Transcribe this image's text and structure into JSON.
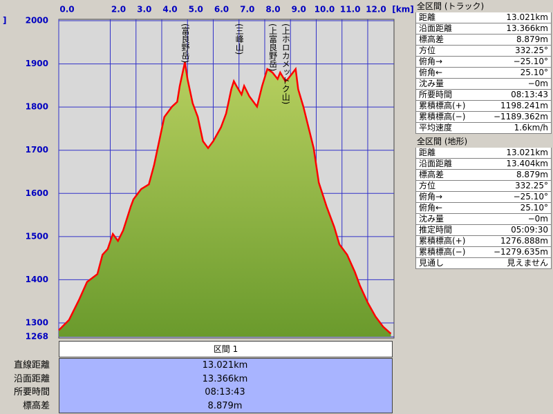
{
  "chart_data": {
    "type": "area",
    "x_unit": "[km]",
    "y_unit": "]",
    "x": [
      0,
      0.4,
      0.8,
      1.1,
      1.5,
      1.7,
      1.9,
      2.1,
      2.3,
      2.5,
      2.8,
      2.9,
      3.2,
      3.5,
      3.7,
      3.9,
      4.1,
      4.4,
      4.6,
      4.7,
      4.9,
      5.0,
      5.2,
      5.4,
      5.6,
      5.8,
      6.0,
      6.3,
      6.5,
      6.7,
      6.8,
      6.9,
      7.1,
      7.2,
      7.4,
      7.7,
      7.9,
      8.1,
      8.3,
      8.5,
      8.6,
      8.8,
      8.9,
      9.2,
      9.3,
      9.5,
      9.7,
      9.9,
      10.1,
      10.4,
      10.7,
      10.9,
      11.2,
      11.5,
      11.7,
      12.0,
      12.3,
      12.6,
      12.9
    ],
    "values": [
      1283,
      1307,
      1355,
      1395,
      1413,
      1458,
      1471,
      1506,
      1490,
      1514,
      1570,
      1586,
      1610,
      1621,
      1665,
      1721,
      1777,
      1801,
      1812,
      1849,
      1904,
      1865,
      1809,
      1777,
      1721,
      1705,
      1721,
      1753,
      1785,
      1841,
      1860,
      1849,
      1829,
      1849,
      1825,
      1801,
      1849,
      1888,
      1880,
      1865,
      1880,
      1860,
      1865,
      1888,
      1841,
      1801,
      1753,
      1705,
      1625,
      1570,
      1522,
      1482,
      1458,
      1418,
      1386,
      1347,
      1315,
      1291,
      1275
    ],
    "line_color": "#ff0000",
    "fill_color": "#6a9a2c",
    "xlim": [
      0,
      13.021
    ],
    "ylim": [
      1268,
      2000
    ],
    "xticks": [
      {
        "value": 0,
        "label": "0.0"
      },
      {
        "value": 2,
        "label": "2.0"
      },
      {
        "value": 3,
        "label": "3.0"
      },
      {
        "value": 4,
        "label": "4.0"
      },
      {
        "value": 5,
        "label": "5.0"
      },
      {
        "value": 6,
        "label": "6.0"
      },
      {
        "value": 7,
        "label": "7.0"
      },
      {
        "value": 8,
        "label": "8.0"
      },
      {
        "value": 9,
        "label": "9.0"
      },
      {
        "value": 10,
        "label": "10.0"
      },
      {
        "value": 11,
        "label": "11.0"
      },
      {
        "value": 12,
        "label": "12.0"
      }
    ],
    "yticks": [
      1268,
      1300,
      1400,
      1500,
      1600,
      1700,
      1800,
      1900,
      2000
    ],
    "grid": true,
    "annotations": [
      {
        "text": "(富良野岳)",
        "x": 4.9
      },
      {
        "text": "(三峰山)",
        "x": 7.0
      },
      {
        "text": "(上富良野岳)",
        "x": 8.3
      },
      {
        "text": "(上ホロカメットク山)",
        "x": 8.8
      }
    ]
  },
  "section": {
    "title": "区間 1",
    "rows": [
      [
        "直線距離",
        "13.021km"
      ],
      [
        "沿面距離",
        "13.366km"
      ],
      [
        "所要時間",
        "08:13:43"
      ],
      [
        "標高差",
        "8.879m"
      ]
    ]
  },
  "panels": [
    {
      "title": "全区間 (トラック)",
      "rows": [
        [
          "距離",
          "13.021km"
        ],
        [
          "沿面距離",
          "13.366km"
        ],
        [
          "標高差",
          "8.879m"
        ],
        [
          "方位",
          "332.25°"
        ],
        [
          "俯角→",
          "−25.10°"
        ],
        [
          "俯角←",
          "25.10°"
        ],
        [
          "沈み量",
          "−0m"
        ],
        [
          "所要時間",
          "08:13:43"
        ],
        [
          "累積標高(+)",
          "1198.241m"
        ],
        [
          "累積標高(−)",
          "−1189.362m"
        ],
        [
          "平均速度",
          "1.6km/h"
        ]
      ]
    },
    {
      "title": "全区間 (地形)",
      "rows": [
        [
          "距離",
          "13.021km"
        ],
        [
          "沿面距離",
          "13.404km"
        ],
        [
          "標高差",
          "8.879m"
        ],
        [
          "方位",
          "332.25°"
        ],
        [
          "俯角→",
          "−25.10°"
        ],
        [
          "俯角←",
          "25.10°"
        ],
        [
          "沈み量",
          "−0m"
        ],
        [
          "推定時間",
          "05:09:30"
        ],
        [
          "累積標高(+)",
          "1276.888m"
        ],
        [
          "累積標高(−)",
          "−1279.635m"
        ],
        [
          "見通し",
          "見えません"
        ]
      ]
    }
  ]
}
